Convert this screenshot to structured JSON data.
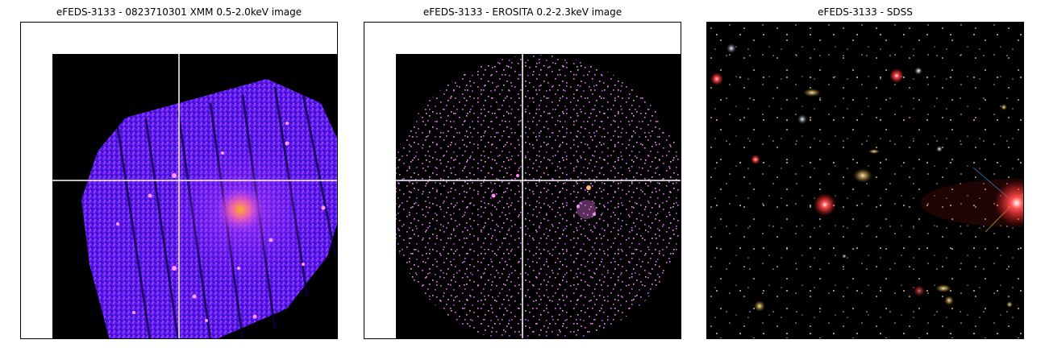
{
  "panels": [
    {
      "title": "eFEDS-3133 - 0823710301 XMM 0.5-2.0keV image",
      "icon": "xmm-xray-image"
    },
    {
      "title": "eFEDS-3133 -  EROSITA 0.2-2.3keV image",
      "icon": "erosita-xray-image"
    },
    {
      "title": "eFEDS-3133 - SDSS",
      "icon": "sdss-optical-image"
    }
  ],
  "colors": {
    "xmm_base": "#6a1cff",
    "xmm_glow": "#ff9a2a",
    "erosita_event": "#ff7dff",
    "crosshair": "#ffffff",
    "sky": "#000000"
  }
}
